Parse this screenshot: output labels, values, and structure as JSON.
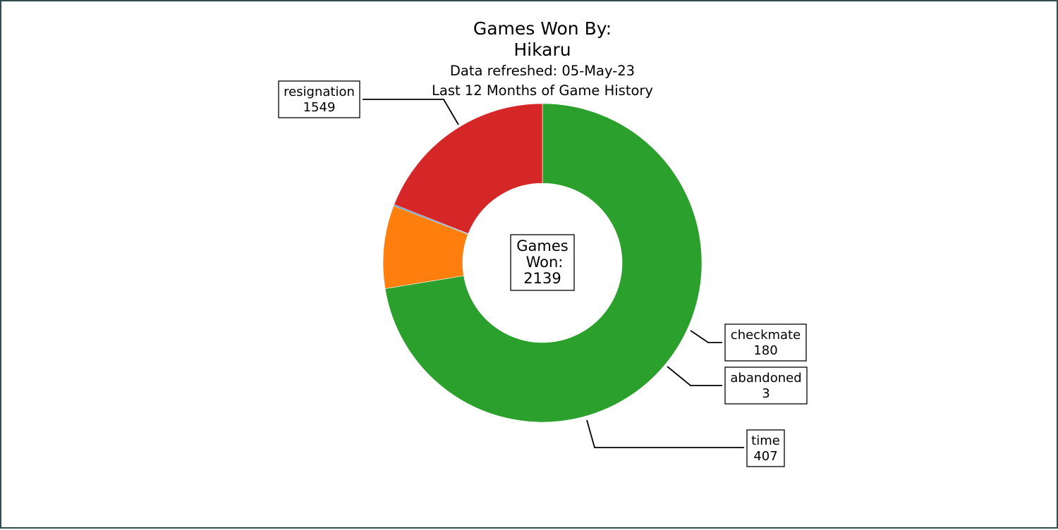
{
  "chart_data": {
    "type": "pie",
    "style": "donut",
    "title_lines": [
      "Games Won By:",
      "Hikaru"
    ],
    "subtitle_lines": [
      "Data refreshed: 05-May-23",
      "Last 12 Months of Game History"
    ],
    "center_lines": [
      "Games",
      "Won:",
      "2139"
    ],
    "slices": [
      {
        "name": "resignation",
        "value": 1549,
        "color": "#2ca02c"
      },
      {
        "name": "checkmate",
        "value": 180,
        "color": "#ff7f0e"
      },
      {
        "name": "abandoned",
        "value": 3,
        "color": "#1f77b4"
      },
      {
        "name": "time",
        "value": 407,
        "color": "#d62728"
      }
    ]
  }
}
